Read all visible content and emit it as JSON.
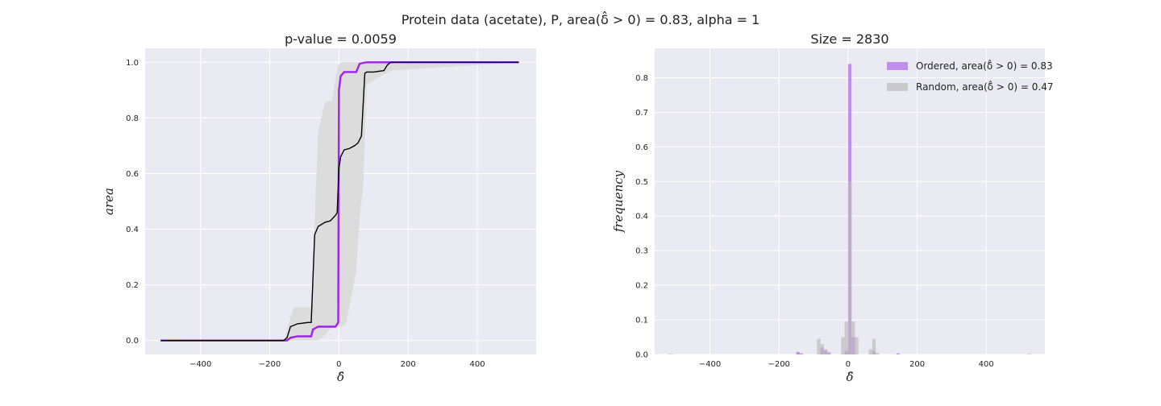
{
  "suptitle": "Protein data (acetate), P, area(δ̂ > 0) = 0.83, alpha = 1",
  "chart_data": [
    {
      "type": "line",
      "title": "p-value = 0.0059",
      "xlabel": "δ̂",
      "ylabel": "area",
      "xlim": [
        -560,
        570
      ],
      "ylim": [
        -0.05,
        1.05
      ],
      "xticks": [
        -400,
        -200,
        0,
        200,
        400
      ],
      "xtick_labels": [
        "−400",
        "−200",
        "0",
        "200",
        "400"
      ],
      "yticks": [
        0.0,
        0.2,
        0.4,
        0.6,
        0.8,
        1.0
      ],
      "ytick_labels": [
        "0.0",
        "0.2",
        "0.4",
        "0.6",
        "0.8",
        "1.0"
      ],
      "grid": true,
      "band": {
        "color": "#dcdcdc",
        "x": [
          -515,
          -160,
          -150,
          -130,
          -80,
          -60,
          -40,
          -20,
          -5,
          5,
          20,
          35,
          50,
          60,
          70,
          80,
          150,
          520
        ],
        "upper": [
          0,
          0,
          0.04,
          0.12,
          0.12,
          0.75,
          0.86,
          0.86,
          0.98,
          1.0,
          1.0,
          1.0,
          1.0,
          1.0,
          1.0,
          1.0,
          1.0,
          1.0
        ],
        "lower": [
          0,
          0,
          0,
          0,
          0,
          0,
          0.02,
          0.05,
          0.05,
          0.05,
          0.06,
          0.15,
          0.25,
          0.45,
          0.55,
          0.92,
          0.97,
          1.0
        ]
      },
      "series": [
        {
          "color": "#a020f0",
          "x": [
            -515,
            -150,
            -140,
            -120,
            -80,
            -75,
            -60,
            -30,
            -10,
            -2,
            0,
            5,
            15,
            30,
            50,
            60,
            80,
            150,
            520
          ],
          "values": [
            0,
            0,
            0.01,
            0.015,
            0.015,
            0.04,
            0.05,
            0.05,
            0.05,
            0.065,
            0.9,
            0.95,
            0.965,
            0.965,
            0.965,
            0.995,
            1.0,
            1.0,
            1.0
          ]
        },
        {
          "color": "#000000",
          "x": [
            -515,
            -160,
            -150,
            -140,
            -120,
            -90,
            -80,
            -70,
            -60,
            -40,
            -25,
            -10,
            -5,
            0,
            5,
            15,
            30,
            45,
            55,
            65,
            75,
            80,
            100,
            130,
            140,
            150,
            520
          ],
          "values": [
            0,
            0,
            0.01,
            0.05,
            0.06,
            0.065,
            0.065,
            0.38,
            0.41,
            0.425,
            0.43,
            0.45,
            0.46,
            0.62,
            0.66,
            0.685,
            0.69,
            0.7,
            0.71,
            0.735,
            0.96,
            0.965,
            0.965,
            0.97,
            0.99,
            1.0,
            1.0
          ]
        }
      ]
    },
    {
      "type": "bar",
      "title": "Size = 2830",
      "xlabel": "δ̂",
      "ylabel": "frequency",
      "xlim": [
        -560,
        570
      ],
      "ylim": [
        0,
        0.885
      ],
      "xticks": [
        -400,
        -200,
        0,
        200,
        400
      ],
      "xtick_labels": [
        "−400",
        "−200",
        "0",
        "200",
        "400"
      ],
      "yticks": [
        0.0,
        0.1,
        0.2,
        0.3,
        0.4,
        0.5,
        0.6,
        0.7,
        0.8
      ],
      "ytick_labels": [
        "0.0",
        "0.1",
        "0.2",
        "0.3",
        "0.4",
        "0.5",
        "0.6",
        "0.7",
        "0.8"
      ],
      "grid": true,
      "bin_width": 10,
      "legend_position": "top-right",
      "series": [
        {
          "name": "Ordered, area(δ̂ > 0) = 0.83",
          "color": "#b266e6",
          "bins": [
            -520,
            -150,
            -140,
            -80,
            -70,
            -60,
            -10,
            0,
            10,
            70,
            140,
            520
          ],
          "values": [
            0.001,
            0.007,
            0.003,
            0.02,
            0.012,
            0.006,
            0.01,
            0.84,
            0.05,
            0.01,
            0.003,
            0.001
          ]
        },
        {
          "name": "Random, area(δ̂ > 0) = 0.47",
          "color": "#bcbcbc",
          "bins": [
            -90,
            -80,
            -70,
            -60,
            -20,
            -10,
            0,
            10,
            20,
            60,
            70,
            80
          ],
          "values": [
            0.045,
            0.03,
            0.015,
            0.005,
            0.05,
            0.095,
            0.5,
            0.095,
            0.05,
            0.015,
            0.045,
            0.005
          ]
        }
      ]
    }
  ]
}
